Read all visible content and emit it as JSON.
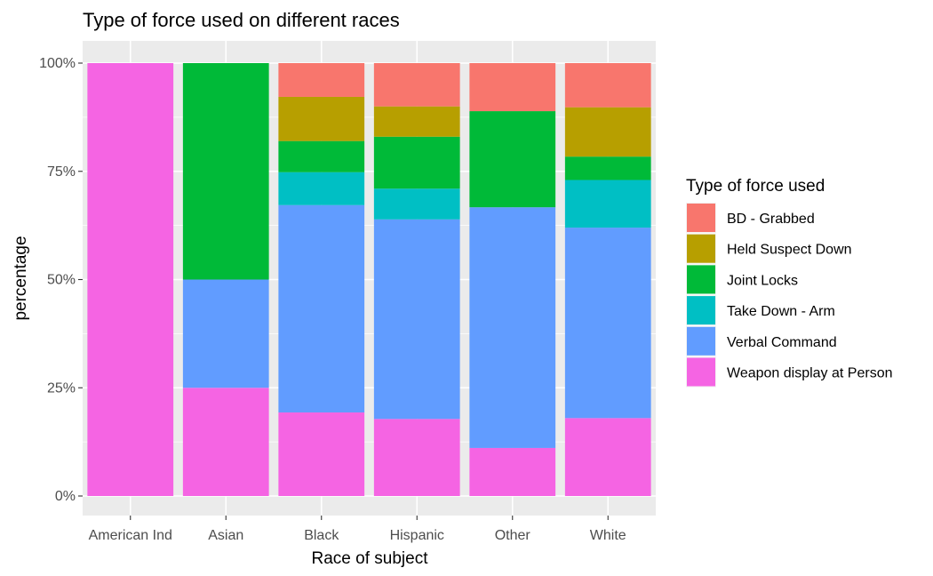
{
  "chart_data": {
    "type": "bar",
    "stacked": true,
    "normalized": true,
    "title": "Type of force used on different races",
    "xlabel": "Race of subject",
    "ylabel": "percentage",
    "ylim": [
      0,
      1
    ],
    "yticks": [
      0,
      0.25,
      0.5,
      0.75,
      1.0
    ],
    "ytick_labels": [
      "0%",
      "25%",
      "50%",
      "75%",
      "100%"
    ],
    "grid": true,
    "legend_position": "right",
    "legend_title": "Type of force used",
    "categories": [
      "American Ind",
      "Asian",
      "Black",
      "Hispanic",
      "Other",
      "White"
    ],
    "series": [
      {
        "name": "Weapon display at Person",
        "color": "#F564E3",
        "values": [
          1.0,
          0.25,
          0.193,
          0.178,
          0.111,
          0.18
        ]
      },
      {
        "name": "Verbal Command",
        "color": "#619CFF",
        "values": [
          0.0,
          0.25,
          0.479,
          0.461,
          0.556,
          0.44
        ]
      },
      {
        "name": "Take Down - Arm",
        "color": "#00BFC4",
        "values": [
          0.0,
          0.0,
          0.076,
          0.071,
          0.0,
          0.11
        ]
      },
      {
        "name": "Joint Locks",
        "color": "#00BA38",
        "values": [
          0.0,
          0.5,
          0.072,
          0.12,
          0.222,
          0.054
        ]
      },
      {
        "name": "Held Suspect Down",
        "color": "#B79F00",
        "values": [
          0.0,
          0.0,
          0.102,
          0.07,
          0.0,
          0.114
        ]
      },
      {
        "name": "BD - Grabbed",
        "color": "#F8766D",
        "values": [
          0.0,
          0.0,
          0.078,
          0.1,
          0.111,
          0.102
        ]
      }
    ]
  }
}
